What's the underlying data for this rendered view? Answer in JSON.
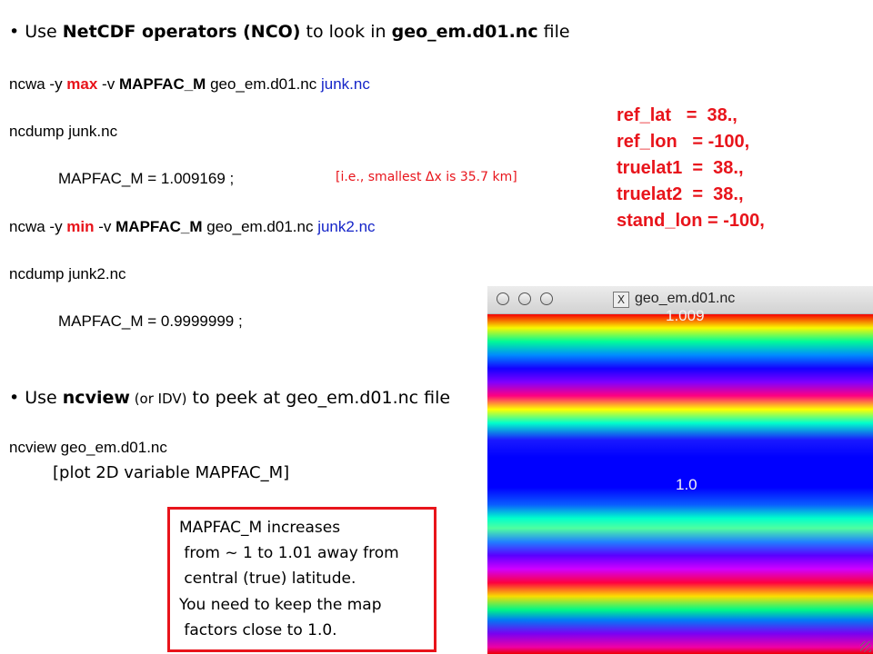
{
  "bullet1": {
    "prefix": "• Use ",
    "bold": "NetCDF operators (NCO)",
    "mid": " to look in ",
    "file": "geo_em.d01.nc",
    "suffix": " file"
  },
  "cmd1": {
    "a": "ncwa -y ",
    "op": "max",
    "b": " -v ",
    "var": "MAPFAC_M",
    "c": " geo_em.d01.nc  ",
    "out": "junk.nc"
  },
  "dump1": "ncdump junk.nc",
  "result1": "MAPFAC_M = 1.009169 ;",
  "note_dx": "[i.e., smallest Δx is 35.7 km]",
  "cmd2": {
    "a": "ncwa -y ",
    "op": "min",
    "b": " -v ",
    "var": "MAPFAC_M",
    "c": " geo_em.d01.nc  ",
    "out": "junk2.nc"
  },
  "dump2": "ncdump junk2.nc",
  "result2": "MAPFAC_M = 0.9999999 ;",
  "bullet2": {
    "prefix": "• Use ",
    "bold": "ncview",
    "paren": " (or IDV)",
    "suffix": " to peek at geo_em.d01.nc file"
  },
  "cmd3": "ncview geo_em.d01.nc",
  "plot_note": "[plot 2D variable MAPFAC_M]",
  "params": [
    "ref_lat   =  38.,",
    "ref_lon   = -100,",
    "truelat1  =  38.,",
    "truelat2  =  38.,",
    "stand_lon = -100,"
  ],
  "callout": [
    "MAPFAC_M increases",
    " from ~ 1 to 1.01 away from",
    " central (true) latitude.",
    "You need to keep the map",
    " factors close to 1.0."
  ],
  "window": {
    "title": "geo_em.d01.nc",
    "x_glyph": "X",
    "label_top": "1.009",
    "label_center": "1.0"
  },
  "colors": {
    "accent_red": "#e8141b",
    "link_blue": "#1424c8"
  }
}
